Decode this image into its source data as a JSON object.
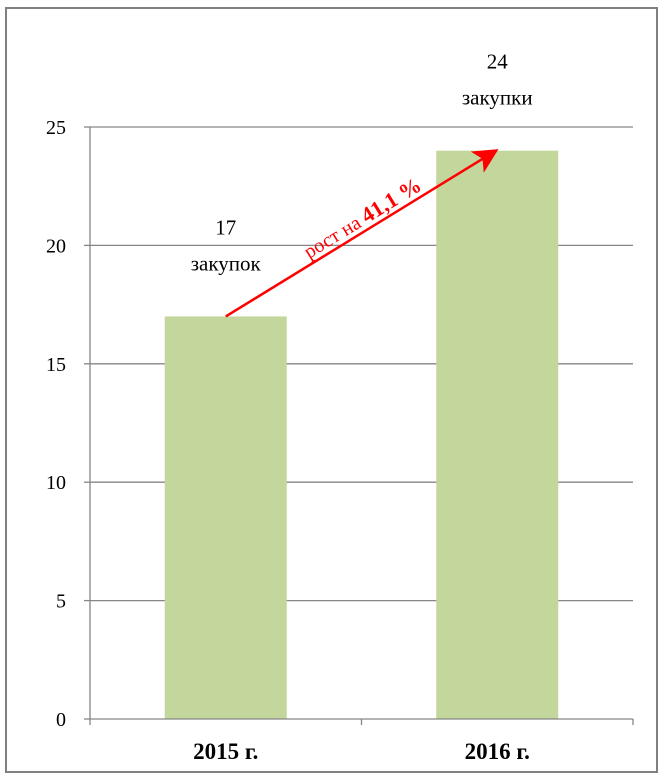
{
  "chart_data": {
    "type": "bar",
    "categories": [
      "2015 г.",
      "2016 г."
    ],
    "values": [
      17,
      24
    ],
    "ylim": [
      0,
      25
    ],
    "yticks": [
      0,
      5,
      10,
      15,
      20,
      25
    ],
    "grid": true,
    "bar_color": "#c3d69b",
    "gridline_color": "#868686",
    "data_labels": [
      {
        "value": "17",
        "unit": "закупок"
      },
      {
        "value": "24",
        "unit": "закупки"
      }
    ],
    "annotation": {
      "prefix": "рост на ",
      "value": "41,1 %",
      "color": "#ff0000"
    }
  }
}
